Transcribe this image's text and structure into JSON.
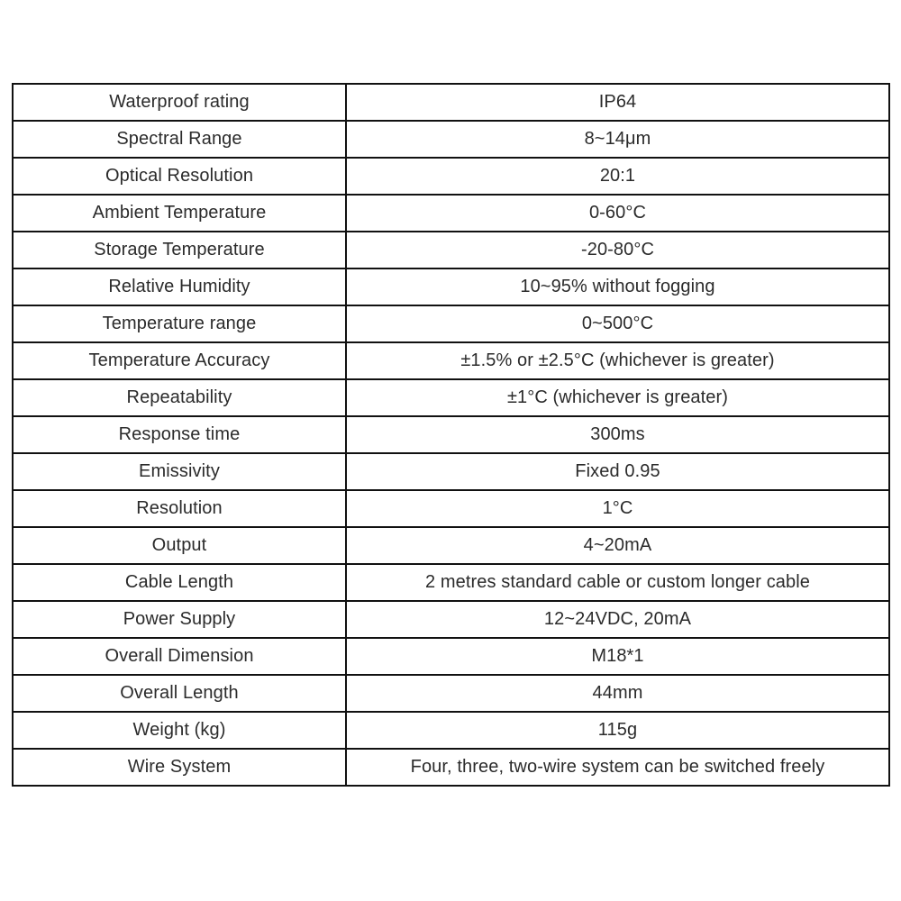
{
  "table": {
    "name": "product-specification-table",
    "columns": [
      "parameter",
      "value"
    ],
    "rows": [
      {
        "label": "Waterproof rating",
        "value": "IP64"
      },
      {
        "label": "Spectral Range",
        "value": "8~14μm"
      },
      {
        "label": "Optical Resolution",
        "value": "20:1"
      },
      {
        "label": "Ambient Temperature",
        "value": "0-60°C"
      },
      {
        "label": "Storage Temperature",
        "value": "-20-80°C"
      },
      {
        "label": "Relative Humidity",
        "value": "10~95% without fogging"
      },
      {
        "label": "Temperature range",
        "value": "0~500°C"
      },
      {
        "label": "Temperature Accuracy",
        "value": "±1.5% or ±2.5°C (whichever is greater)"
      },
      {
        "label": "Repeatability",
        "value": "±1°C (whichever is greater)"
      },
      {
        "label": "Response time",
        "value": "300ms"
      },
      {
        "label": "Emissivity",
        "value": "Fixed 0.95"
      },
      {
        "label": "Resolution",
        "value": "1°C"
      },
      {
        "label": "Output",
        "value": "4~20mA"
      },
      {
        "label": "Cable Length",
        "value": "2 metres standard cable or custom longer cable"
      },
      {
        "label": "Power Supply",
        "value": "12~24VDC, 20mA"
      },
      {
        "label": "Overall Dimension",
        "value": "M18*1"
      },
      {
        "label": "Overall Length",
        "value": "44mm"
      },
      {
        "label": "Weight (kg)",
        "value": "115g"
      },
      {
        "label": "Wire System",
        "value": "Four, three, two-wire system can be switched freely"
      }
    ],
    "colors": {
      "border": "#111111",
      "text": "#2b2b2b",
      "background": "#ffffff"
    }
  }
}
